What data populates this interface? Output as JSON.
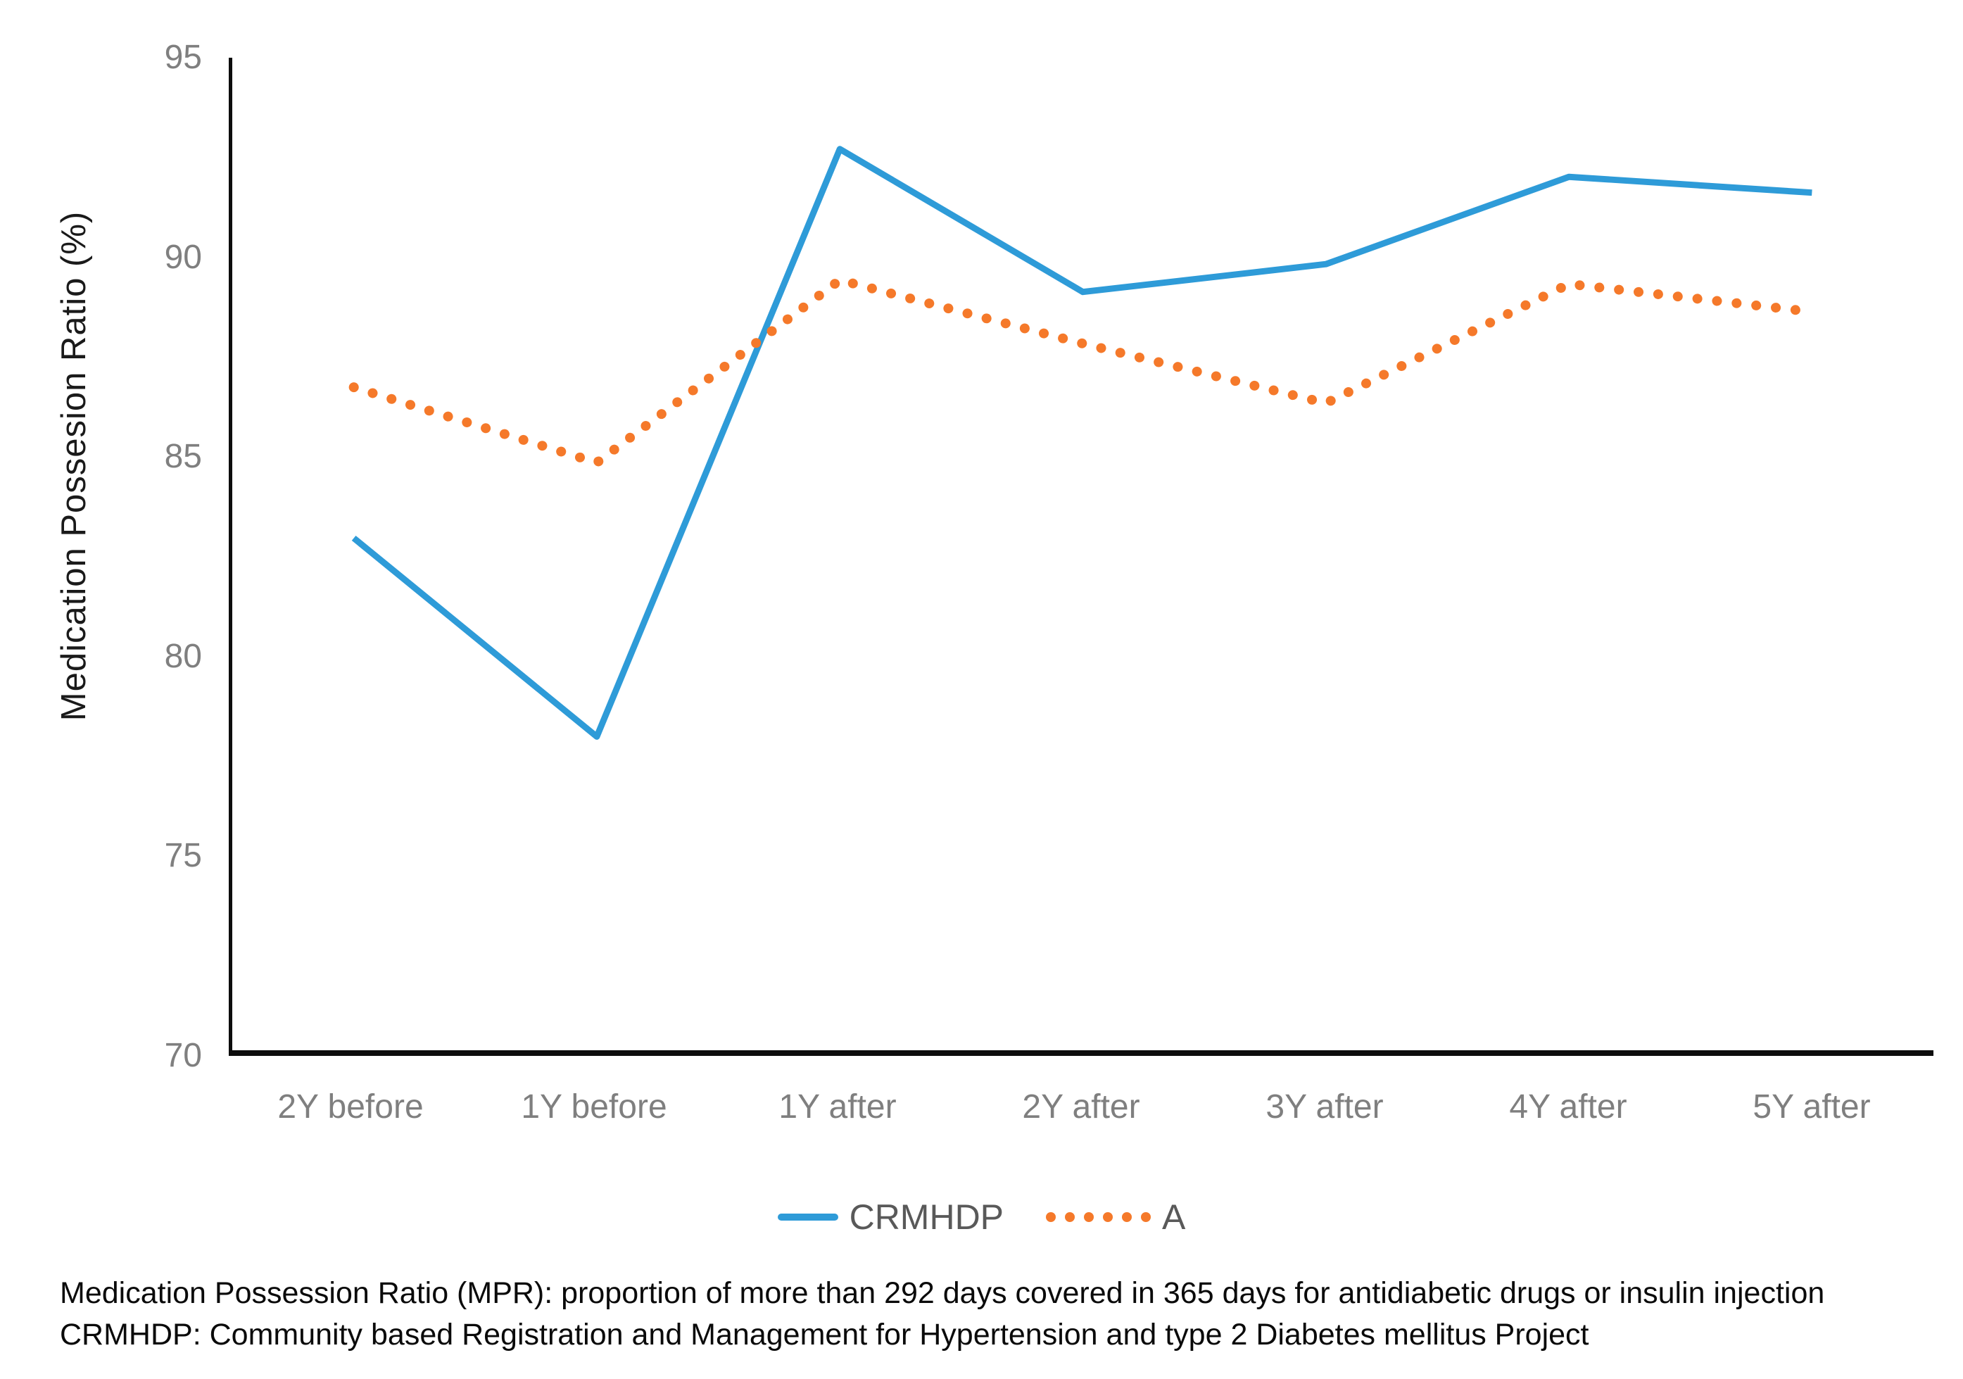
{
  "chart_data": {
    "type": "line",
    "title": "",
    "xlabel": "",
    "ylabel": "Medication Possesion Ratio (%)",
    "categories": [
      "2Y before",
      "1Y before",
      "1Y after",
      "2Y after",
      "3Y after",
      "4Y after",
      "5Y after"
    ],
    "series": [
      {
        "name": "CRMHDP",
        "style": "solid",
        "color": "#2e9bd8",
        "values": [
          82.9,
          77.9,
          92.7,
          89.1,
          89.8,
          92.0,
          91.6
        ]
      },
      {
        "name": "A",
        "style": "dotted",
        "color": "#f5792a",
        "values": [
          86.7,
          84.8,
          89.4,
          87.8,
          86.3,
          89.3,
          88.6
        ]
      }
    ],
    "ylim": [
      70,
      95
    ],
    "yticks": [
      95,
      90,
      85,
      80,
      75,
      70
    ],
    "grid": false,
    "legend_position": "bottom"
  },
  "colors": {
    "axis_line": "#0d0d0d",
    "tick_label": "#7f7f7f",
    "legend_text": "#595959",
    "series_crmhdp": "#2e9bd8",
    "series_a": "#f5792a"
  },
  "footnotes": {
    "line1": "Medication Possession Ratio (MPR): proportion of more than 292 days covered in 365 days for antidiabetic drugs or insulin injection",
    "line2": "CRMHDP: Community based Registration and Management for Hypertension and type 2 Diabetes mellitus Project"
  }
}
